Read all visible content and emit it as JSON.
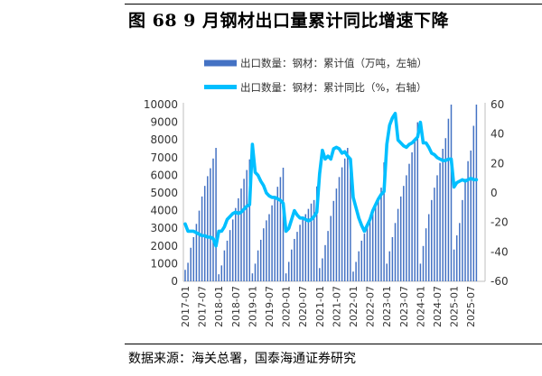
{
  "figure": {
    "title": "图 68 9 月钢材出口量累计同比增速下降",
    "source": "数据来源：海关总署，国泰海通证券研究"
  },
  "colors": {
    "bars": "#4472C4",
    "line": "#00BFFF"
  },
  "chart_data": {
    "type": "bar",
    "title": "图 68 9 月钢材出口量累计同比增速下降",
    "x_tick_labels": [
      "2017-01",
      "2017-07",
      "2018-01",
      "2018-07",
      "2019-01",
      "2019-07",
      "2020-01",
      "2020-07",
      "2021-01",
      "2021-07",
      "2022-01",
      "2022-07",
      "2023-01",
      "2023-07",
      "2024-01",
      "2024-07",
      "2025-01",
      "2025-07"
    ],
    "y_left": {
      "ticks": [
        "0",
        "1000",
        "2000",
        "3000",
        "4000",
        "5000",
        "6000",
        "7000",
        "8000",
        "9000",
        "10000"
      ],
      "range": [
        0,
        10000
      ]
    },
    "y_right": {
      "ticks": [
        "-60",
        "-40",
        "-20",
        "0",
        "20",
        "40",
        "60"
      ],
      "range": [
        -60,
        60
      ]
    },
    "legend_position": "top-center",
    "series": [
      {
        "name": "出口数量：钢材：累计值（万吨，左轴）",
        "kind": "bar",
        "axis": "left",
        "start": "2017-01",
        "values": [
          650,
          1050,
          1900,
          2500,
          3250,
          4000,
          4800,
          5400,
          5950,
          6400,
          6950,
          7550,
          400,
          900,
          1750,
          2300,
          2900,
          3500,
          4150,
          4700,
          5250,
          5800,
          6300,
          6900,
          450,
          1000,
          1750,
          2350,
          3000,
          3450,
          3800,
          4300,
          4820,
          5350,
          5900,
          6430,
          450,
          1100,
          1800,
          2400,
          2800,
          3200,
          3500,
          3800,
          4100,
          4400,
          4600,
          5370,
          750,
          1300,
          2050,
          2850,
          3700,
          4550,
          5250,
          5900,
          6450,
          6950,
          7550,
          6690,
          550,
          1100,
          1700,
          2300,
          2700,
          3200,
          3600,
          3900,
          4250,
          4650,
          5300,
          6730,
          1000,
          1700,
          2500,
          3300,
          4100,
          4800,
          5400,
          6000,
          6650,
          7300,
          7950,
          9000,
          1000,
          2000,
          3000,
          3800,
          4600,
          5300,
          6000,
          6700,
          7500,
          8100,
          9200,
          10000,
          1800,
          2600,
          3300,
          4600,
          5800,
          6800,
          7400,
          8800,
          10000
        ]
      },
      {
        "name": "出口数量：钢材：累计同比（%，右轴）",
        "kind": "line",
        "axis": "right",
        "start": "2017-01",
        "values": [
          -21,
          -26,
          -26,
          -26,
          -27,
          -28,
          -29,
          -29,
          -30,
          -30,
          -31,
          -36,
          -26,
          -26,
          -23,
          -18,
          -16,
          -14,
          -13,
          -14,
          -13,
          -11,
          -9,
          -8,
          33,
          14,
          12,
          8,
          5,
          0,
          -2,
          -3,
          -3,
          -4,
          -5,
          -7,
          -26,
          -24,
          -18,
          -12,
          -15,
          -17,
          -17,
          -18,
          -19,
          -18,
          -16,
          -13,
          13,
          29,
          23,
          25,
          23,
          30,
          31,
          30,
          27,
          28,
          25,
          23,
          -3,
          -10,
          -17,
          -22,
          -26,
          -22,
          -18,
          -12,
          -8,
          -4,
          -1,
          1,
          33,
          46,
          51,
          54,
          36,
          34,
          32,
          31,
          33,
          34,
          36,
          38,
          48,
          34,
          34,
          31,
          27,
          26,
          24,
          23,
          22,
          22,
          23,
          23,
          4,
          7,
          8,
          9,
          8,
          9,
          10,
          9,
          9
        ]
      }
    ]
  }
}
